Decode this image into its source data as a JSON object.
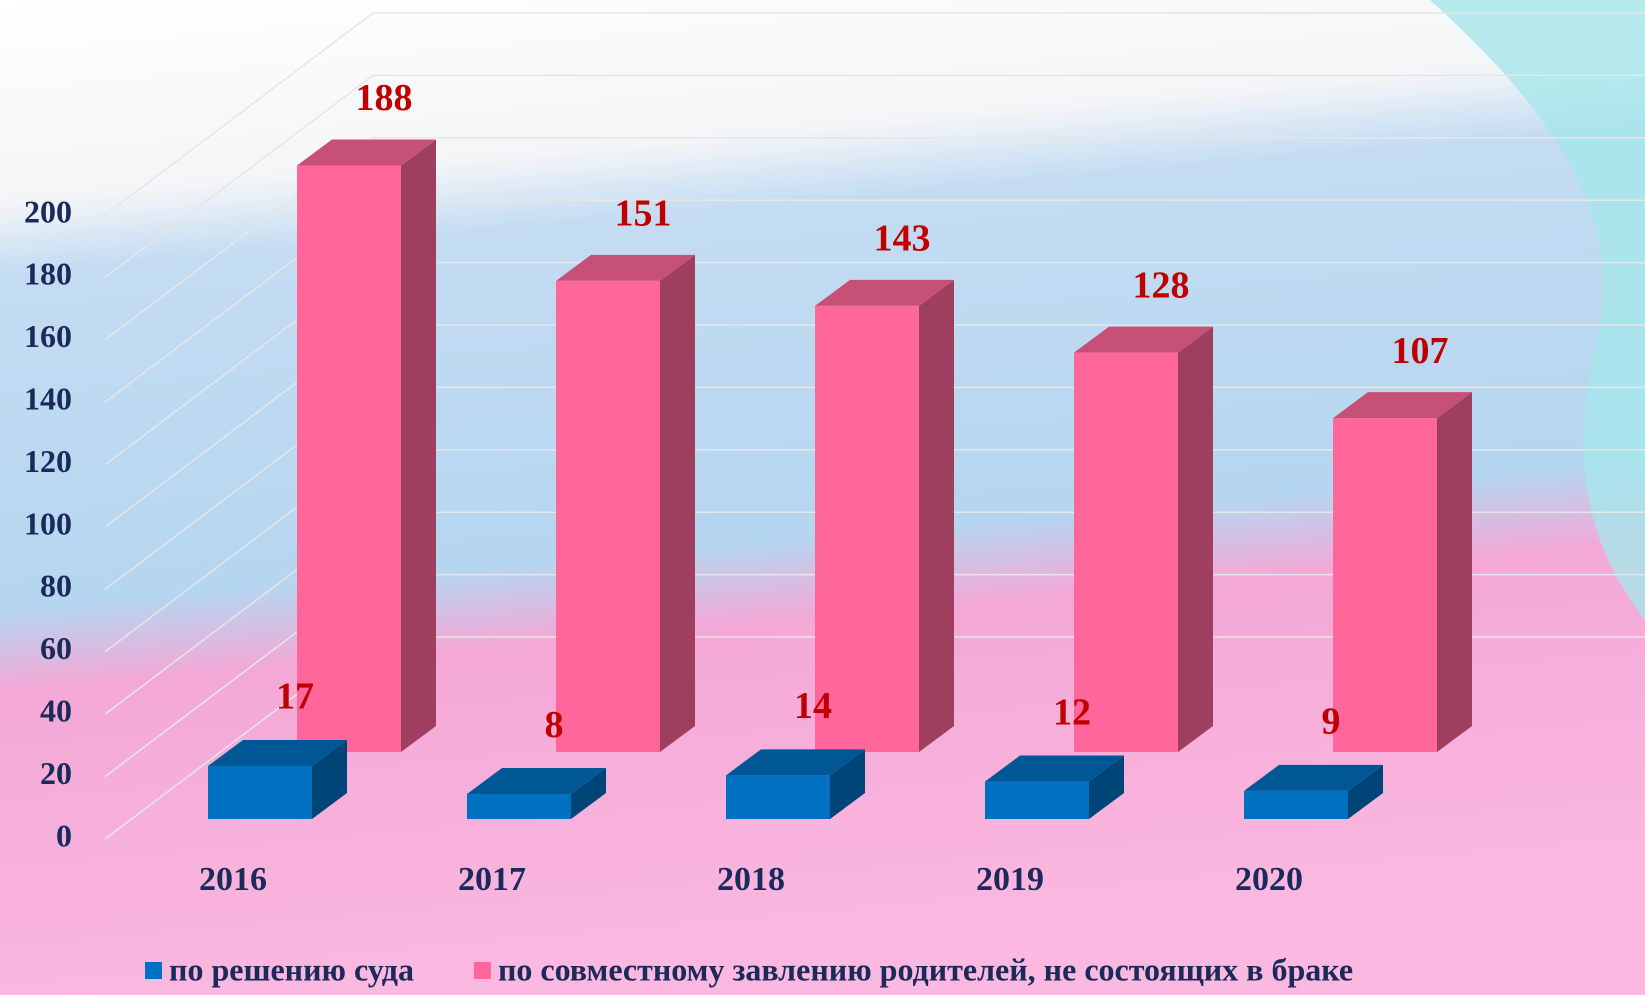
{
  "chart_data": {
    "type": "bar3d",
    "categories": [
      "2016",
      "2017",
      "2018",
      "2019",
      "2020"
    ],
    "series": [
      {
        "name": "по решению суда",
        "color": "#0070c0",
        "values": [
          17,
          8,
          14,
          12,
          9
        ]
      },
      {
        "name": "по совместному завлению родителей, не состоящих в браке",
        "color": "#ff6699",
        "values": [
          188,
          151,
          143,
          128,
          107
        ]
      }
    ],
    "ylim": [
      0,
      240
    ],
    "yticks": [
      0,
      20,
      40,
      60,
      80,
      100,
      120,
      140,
      160,
      180,
      200
    ],
    "grid": true,
    "legend": "bottom"
  }
}
